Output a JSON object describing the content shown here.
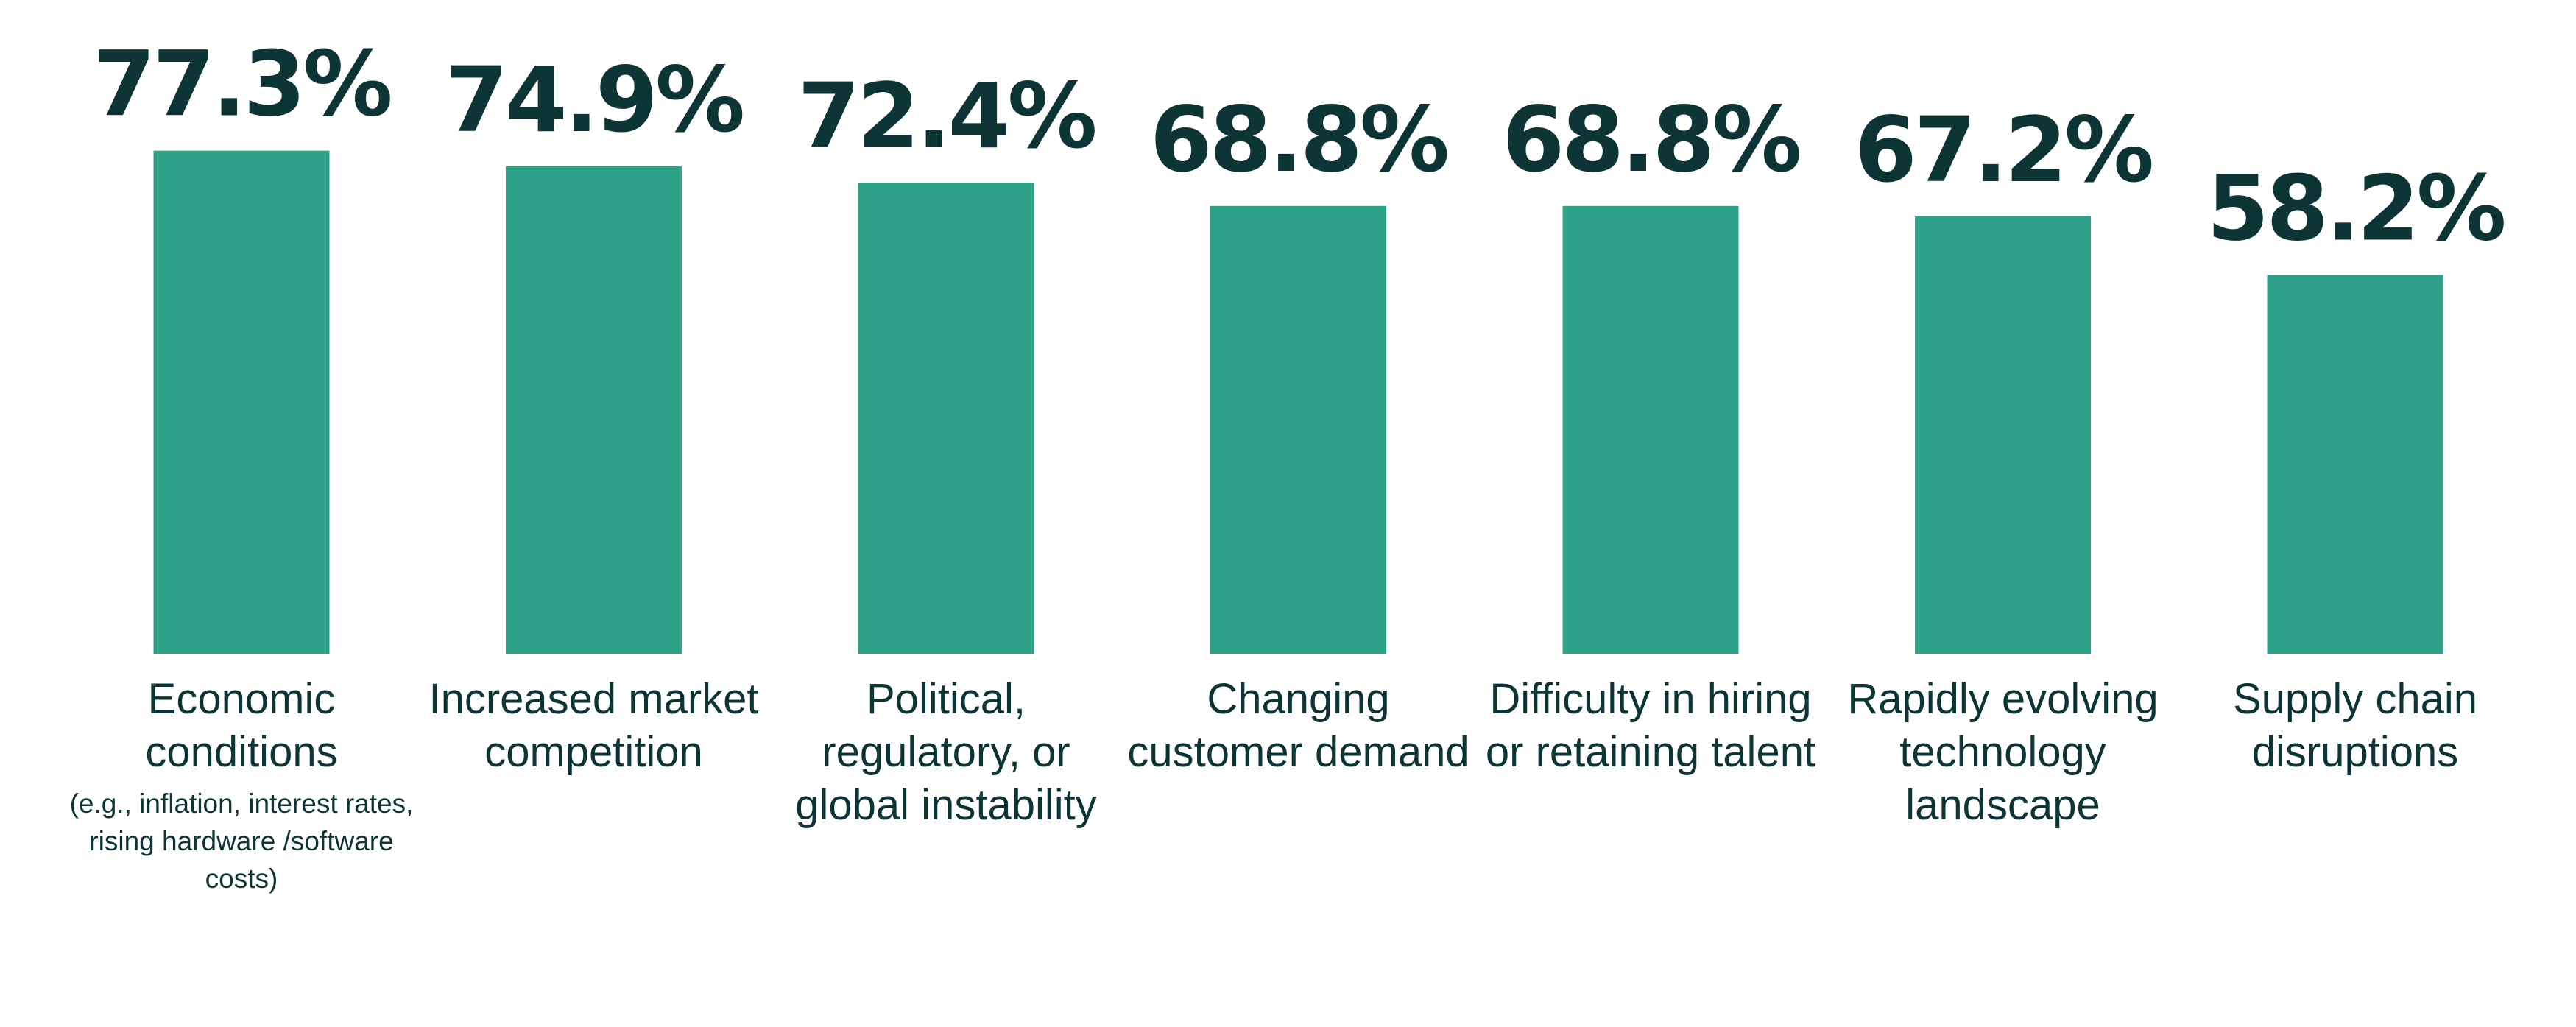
{
  "chart_data": {
    "type": "bar",
    "categories": [
      "Economic conditions",
      "Increased market competition",
      "Political, regulatory, or global instability",
      "Changing customer demand",
      "Difficulty in hiring or retaining talent",
      "Rapidly evolving technology landscape",
      "Supply chain disruptions"
    ],
    "annotation": "(e.g., inflation, interest rates, rising hardware /software costs)",
    "values": [
      77.3,
      74.9,
      72.4,
      68.8,
      68.8,
      67.2,
      58.2
    ],
    "value_labels": [
      "77.3%",
      "74.9%",
      "72.4%",
      "68.8%",
      "68.8%",
      "67.2%",
      "58.2%"
    ],
    "color": "#2ea189"
  }
}
